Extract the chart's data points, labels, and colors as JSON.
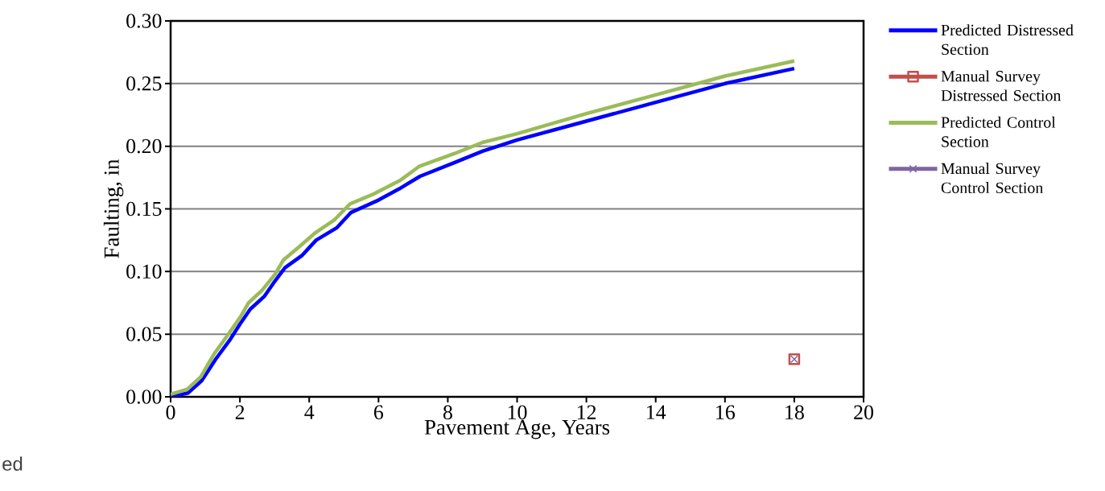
{
  "chart_data": {
    "type": "line",
    "xlabel": "Pavement Age, Years",
    "ylabel": "Faulting, in",
    "xlim": [
      0,
      20
    ],
    "ylim": [
      0,
      0.3
    ],
    "xticks": [
      0,
      2,
      4,
      6,
      8,
      10,
      12,
      14,
      16,
      18,
      20
    ],
    "yticks": [
      {
        "value": 0,
        "label": "0.00"
      },
      {
        "value": 0.05,
        "label": "0.05"
      },
      {
        "value": 0.1,
        "label": "0.10"
      },
      {
        "value": 0.15,
        "label": "0.15"
      },
      {
        "value": 0.2,
        "label": "0.20"
      },
      {
        "value": 0.25,
        "label": "0.25"
      },
      {
        "value": 0.3,
        "label": "0.30"
      }
    ],
    "grid": "y",
    "legend": "right",
    "line_style": "solid",
    "series": [
      {
        "name": "Predicted Distressed Section",
        "color": "#0000ff",
        "marker": "none",
        "x": [
          0,
          0.5,
          0.9,
          1.3,
          1.7,
          2.0,
          2.3,
          2.7,
          3.0,
          3.3,
          3.8,
          4.2,
          4.8,
          5.2,
          6.0,
          6.6,
          7.2,
          8.2,
          9.0,
          10,
          12,
          14,
          16,
          18
        ],
        "values": [
          0,
          0.003,
          0.013,
          0.03,
          0.045,
          0.058,
          0.07,
          0.08,
          0.092,
          0.103,
          0.113,
          0.125,
          0.135,
          0.147,
          0.157,
          0.166,
          0.176,
          0.187,
          0.196,
          0.205,
          0.22,
          0.235,
          0.25,
          0.262
        ]
      },
      {
        "name": "Manual Survey Distressed Section",
        "color": "#c0504d",
        "marker": "square",
        "x": [
          18
        ],
        "values": [
          0.03
        ]
      },
      {
        "name": "Predicted Control Section",
        "color": "#9bbb59",
        "marker": "none",
        "x": [
          0,
          0.48,
          0.87,
          1.25,
          1.64,
          2.02,
          2.25,
          2.64,
          3.02,
          3.25,
          3.72,
          4.18,
          4.72,
          5.18,
          5.87,
          6.64,
          7.18,
          8.18,
          9.0,
          10,
          12,
          14,
          16,
          18
        ],
        "values": [
          0.002,
          0.006,
          0.016,
          0.034,
          0.049,
          0.064,
          0.075,
          0.085,
          0.098,
          0.109,
          0.12,
          0.131,
          0.141,
          0.154,
          0.162,
          0.173,
          0.184,
          0.194,
          0.203,
          0.21,
          0.226,
          0.241,
          0.256,
          0.268
        ]
      },
      {
        "name": "Manual Survey Control Section",
        "color": "#8064a2",
        "marker": "cross",
        "x": [
          18
        ],
        "values": [
          0.03
        ]
      }
    ],
    "annotations": [
      "ed"
    ]
  }
}
